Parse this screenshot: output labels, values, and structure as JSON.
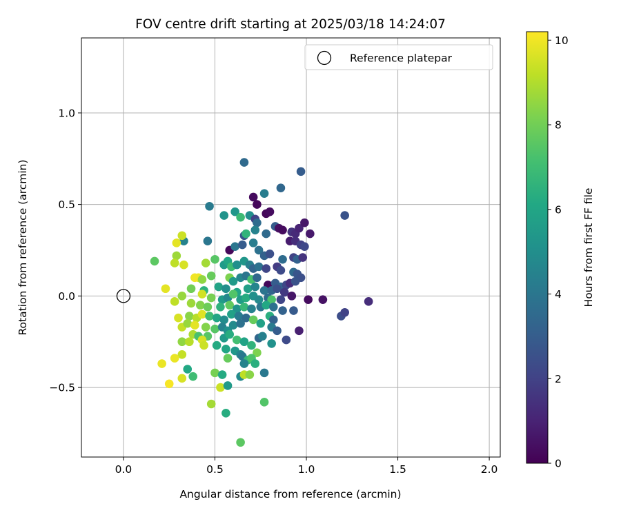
{
  "chart_data": {
    "type": "scatter",
    "title": "FOV centre drift starting at 2025/03/18 14:24:07",
    "xlabel": "Angular distance from reference (arcmin)",
    "ylabel": "Rotation from reference (arcmin)",
    "xlim": [
      -0.23,
      2.06
    ],
    "ylim": [
      -0.88,
      1.41
    ],
    "x_ticks": [
      0.0,
      0.5,
      1.0,
      1.5,
      2.0
    ],
    "x_tick_labels": [
      "0.0",
      "0.5",
      "1.0",
      "1.5",
      "2.0"
    ],
    "y_ticks": [
      -0.5,
      0.0,
      0.5,
      1.0
    ],
    "y_tick_labels": [
      "−0.5",
      "0.0",
      "0.5",
      "1.0"
    ],
    "grid": true,
    "legend": {
      "placement": "top-right",
      "entries": [
        {
          "label": "Reference platepar",
          "marker": "open-circle"
        }
      ]
    },
    "reference_point": {
      "x": 0.0,
      "y": 0.0
    },
    "colorbar": {
      "label": "Hours from first FF file",
      "colormap": "viridis",
      "range": [
        0,
        10.2
      ],
      "ticks": [
        0,
        2,
        4,
        6,
        8,
        10
      ],
      "tick_labels": [
        "0",
        "2",
        "4",
        "6",
        "8",
        "10"
      ]
    },
    "points": [
      {
        "x": 0.66,
        "y": 0.73,
        "c": 3.5
      },
      {
        "x": 0.97,
        "y": 0.68,
        "c": 3.0
      },
      {
        "x": 0.77,
        "y": 0.56,
        "c": 4.3
      },
      {
        "x": 0.86,
        "y": 0.59,
        "c": 3.4
      },
      {
        "x": 0.47,
        "y": 0.49,
        "c": 4.2
      },
      {
        "x": 0.55,
        "y": 0.44,
        "c": 5.2
      },
      {
        "x": 0.61,
        "y": 0.46,
        "c": 5.3
      },
      {
        "x": 0.64,
        "y": 0.43,
        "c": 6.9
      },
      {
        "x": 0.71,
        "y": 0.54,
        "c": 0.3
      },
      {
        "x": 0.73,
        "y": 0.5,
        "c": 0.2
      },
      {
        "x": 0.78,
        "y": 0.45,
        "c": 0.2
      },
      {
        "x": 0.8,
        "y": 0.46,
        "c": 0.3
      },
      {
        "x": 0.69,
        "y": 0.44,
        "c": 5.0
      },
      {
        "x": 0.72,
        "y": 0.42,
        "c": 2.0
      },
      {
        "x": 0.73,
        "y": 0.4,
        "c": 3.6
      },
      {
        "x": 0.83,
        "y": 0.38,
        "c": 3.0
      },
      {
        "x": 0.85,
        "y": 0.37,
        "c": 0.4
      },
      {
        "x": 0.87,
        "y": 0.36,
        "c": 0.3
      },
      {
        "x": 0.92,
        "y": 0.35,
        "c": 1.5
      },
      {
        "x": 0.94,
        "y": 0.34,
        "c": 1.2
      },
      {
        "x": 0.96,
        "y": 0.37,
        "c": 1.0
      },
      {
        "x": 0.99,
        "y": 0.4,
        "c": 0.6
      },
      {
        "x": 1.02,
        "y": 0.34,
        "c": 0.7
      },
      {
        "x": 1.21,
        "y": 0.44,
        "c": 2.6
      },
      {
        "x": 0.66,
        "y": 0.33,
        "c": 2.7
      },
      {
        "x": 0.67,
        "y": 0.34,
        "c": 6.6
      },
      {
        "x": 0.72,
        "y": 0.36,
        "c": 4.5
      },
      {
        "x": 0.78,
        "y": 0.34,
        "c": 3.5
      },
      {
        "x": 0.91,
        "y": 0.3,
        "c": 0.8
      },
      {
        "x": 0.94,
        "y": 0.3,
        "c": 1.3
      },
      {
        "x": 0.97,
        "y": 0.28,
        "c": 1.9
      },
      {
        "x": 0.99,
        "y": 0.27,
        "c": 2.2
      },
      {
        "x": 0.33,
        "y": 0.3,
        "c": 4.5
      },
      {
        "x": 0.32,
        "y": 0.33,
        "c": 9.4
      },
      {
        "x": 0.29,
        "y": 0.29,
        "c": 9.8
      },
      {
        "x": 0.46,
        "y": 0.3,
        "c": 4.0
      },
      {
        "x": 0.58,
        "y": 0.25,
        "c": 0.2
      },
      {
        "x": 0.61,
        "y": 0.27,
        "c": 4.0
      },
      {
        "x": 0.65,
        "y": 0.28,
        "c": 3.0
      },
      {
        "x": 0.71,
        "y": 0.29,
        "c": 4.3
      },
      {
        "x": 0.74,
        "y": 0.25,
        "c": 3.8
      },
      {
        "x": 0.77,
        "y": 0.22,
        "c": 3.2
      },
      {
        "x": 0.8,
        "y": 0.23,
        "c": 2.5
      },
      {
        "x": 0.87,
        "y": 0.2,
        "c": 3.6
      },
      {
        "x": 0.93,
        "y": 0.21,
        "c": 2.0
      },
      {
        "x": 0.95,
        "y": 0.2,
        "c": 3.2
      },
      {
        "x": 0.98,
        "y": 0.21,
        "c": 1.5
      },
      {
        "x": 0.17,
        "y": 0.19,
        "c": 7.6
      },
      {
        "x": 0.29,
        "y": 0.22,
        "c": 8.7
      },
      {
        "x": 0.28,
        "y": 0.18,
        "c": 9.2
      },
      {
        "x": 0.33,
        "y": 0.17,
        "c": 9.6
      },
      {
        "x": 0.45,
        "y": 0.18,
        "c": 8.8
      },
      {
        "x": 0.5,
        "y": 0.2,
        "c": 7.5
      },
      {
        "x": 0.55,
        "y": 0.17,
        "c": 5.5
      },
      {
        "x": 0.57,
        "y": 0.19,
        "c": 6.0
      },
      {
        "x": 0.59,
        "y": 0.16,
        "c": 7.0
      },
      {
        "x": 0.62,
        "y": 0.17,
        "c": 5.0
      },
      {
        "x": 0.66,
        "y": 0.19,
        "c": 5.3
      },
      {
        "x": 0.69,
        "y": 0.17,
        "c": 4.4
      },
      {
        "x": 0.71,
        "y": 0.15,
        "c": 3.3
      },
      {
        "x": 0.74,
        "y": 0.16,
        "c": 3.8
      },
      {
        "x": 0.78,
        "y": 0.15,
        "c": 2.1
      },
      {
        "x": 0.84,
        "y": 0.16,
        "c": 1.8
      },
      {
        "x": 0.86,
        "y": 0.14,
        "c": 2.3
      },
      {
        "x": 0.93,
        "y": 0.13,
        "c": 3.5
      },
      {
        "x": 0.95,
        "y": 0.12,
        "c": 2.7
      },
      {
        "x": 0.97,
        "y": 0.1,
        "c": 2.5
      },
      {
        "x": 0.41,
        "y": 0.1,
        "c": 9.9
      },
      {
        "x": 0.39,
        "y": 0.1,
        "c": 10.0
      },
      {
        "x": 0.43,
        "y": 0.09,
        "c": 8.5
      },
      {
        "x": 0.48,
        "y": 0.11,
        "c": 7.8
      },
      {
        "x": 0.58,
        "y": 0.1,
        "c": 8.2
      },
      {
        "x": 0.6,
        "y": 0.08,
        "c": 5.5
      },
      {
        "x": 0.64,
        "y": 0.1,
        "c": 4.7
      },
      {
        "x": 0.67,
        "y": 0.11,
        "c": 4.0
      },
      {
        "x": 0.7,
        "y": 0.09,
        "c": 7.2
      },
      {
        "x": 0.73,
        "y": 0.1,
        "c": 3.4
      },
      {
        "x": 0.79,
        "y": 0.06,
        "c": 0.2
      },
      {
        "x": 0.83,
        "y": 0.07,
        "c": 3.0
      },
      {
        "x": 0.86,
        "y": 0.05,
        "c": 3.4
      },
      {
        "x": 0.89,
        "y": 0.06,
        "c": 2.2
      },
      {
        "x": 0.91,
        "y": 0.07,
        "c": 1.3
      },
      {
        "x": 0.94,
        "y": 0.08,
        "c": 2.6
      },
      {
        "x": 0.23,
        "y": 0.04,
        "c": 9.8
      },
      {
        "x": 0.37,
        "y": 0.04,
        "c": 8.0
      },
      {
        "x": 0.44,
        "y": 0.03,
        "c": 6.5
      },
      {
        "x": 0.52,
        "y": 0.05,
        "c": 5.9
      },
      {
        "x": 0.56,
        "y": 0.04,
        "c": 5.0
      },
      {
        "x": 0.62,
        "y": 0.02,
        "c": 6.0
      },
      {
        "x": 0.68,
        "y": 0.04,
        "c": 5.7
      },
      {
        "x": 0.72,
        "y": 0.05,
        "c": 4.6
      },
      {
        "x": 0.77,
        "y": 0.03,
        "c": 3.9
      },
      {
        "x": 0.81,
        "y": 0.03,
        "c": 3.3
      },
      {
        "x": 0.84,
        "y": 0.04,
        "c": 2.5
      },
      {
        "x": 0.88,
        "y": 0.02,
        "c": 1.7
      },
      {
        "x": 0.92,
        "y": 0.0,
        "c": 0.6
      },
      {
        "x": 0.32,
        "y": 0.0,
        "c": 8.6
      },
      {
        "x": 0.43,
        "y": 0.01,
        "c": 9.5
      },
      {
        "x": 0.48,
        "y": -0.01,
        "c": 8.1
      },
      {
        "x": 0.54,
        "y": -0.02,
        "c": 5.5
      },
      {
        "x": 0.57,
        "y": -0.01,
        "c": 4.7
      },
      {
        "x": 0.6,
        "y": 0.01,
        "c": 7.4
      },
      {
        "x": 0.64,
        "y": -0.02,
        "c": 5.6
      },
      {
        "x": 0.67,
        "y": -0.01,
        "c": 6.3
      },
      {
        "x": 0.71,
        "y": 0.0,
        "c": 5.1
      },
      {
        "x": 0.74,
        "y": -0.02,
        "c": 4.8
      },
      {
        "x": 0.79,
        "y": -0.01,
        "c": 3.5
      },
      {
        "x": 0.81,
        "y": -0.02,
        "c": 7.3
      },
      {
        "x": 0.86,
        "y": -0.02,
        "c": 2.1
      },
      {
        "x": 1.01,
        "y": -0.02,
        "c": 0.3
      },
      {
        "x": 1.09,
        "y": -0.02,
        "c": 0.5
      },
      {
        "x": 1.34,
        "y": -0.03,
        "c": 1.3
      },
      {
        "x": 0.28,
        "y": -0.03,
        "c": 9.2
      },
      {
        "x": 0.37,
        "y": -0.04,
        "c": 8.7
      },
      {
        "x": 0.42,
        "y": -0.05,
        "c": 8.3
      },
      {
        "x": 0.46,
        "y": -0.06,
        "c": 7.9
      },
      {
        "x": 0.53,
        "y": -0.06,
        "c": 6.5
      },
      {
        "x": 0.58,
        "y": -0.05,
        "c": 7.7
      },
      {
        "x": 0.62,
        "y": -0.07,
        "c": 5.2
      },
      {
        "x": 0.66,
        "y": -0.06,
        "c": 6.8
      },
      {
        "x": 0.7,
        "y": -0.07,
        "c": 4.5
      },
      {
        "x": 0.75,
        "y": -0.06,
        "c": 4.0
      },
      {
        "x": 0.78,
        "y": -0.05,
        "c": 6.1
      },
      {
        "x": 0.82,
        "y": -0.06,
        "c": 3.8
      },
      {
        "x": 0.87,
        "y": -0.08,
        "c": 3.2
      },
      {
        "x": 0.93,
        "y": -0.08,
        "c": 2.9
      },
      {
        "x": 1.19,
        "y": -0.11,
        "c": 2.4
      },
      {
        "x": 1.21,
        "y": -0.09,
        "c": 2.0
      },
      {
        "x": 0.3,
        "y": -0.12,
        "c": 9.6
      },
      {
        "x": 0.36,
        "y": -0.11,
        "c": 8.4
      },
      {
        "x": 0.4,
        "y": -0.12,
        "c": 9.1
      },
      {
        "x": 0.43,
        "y": -0.1,
        "c": 9.7
      },
      {
        "x": 0.47,
        "y": -0.11,
        "c": 7.0
      },
      {
        "x": 0.51,
        "y": -0.12,
        "c": 6.0
      },
      {
        "x": 0.55,
        "y": -0.13,
        "c": 4.9
      },
      {
        "x": 0.59,
        "y": -0.1,
        "c": 5.8
      },
      {
        "x": 0.63,
        "y": -0.11,
        "c": 4.2
      },
      {
        "x": 0.67,
        "y": -0.12,
        "c": 3.5
      },
      {
        "x": 0.71,
        "y": -0.13,
        "c": 7.8
      },
      {
        "x": 0.8,
        "y": -0.11,
        "c": 6.4
      },
      {
        "x": 0.82,
        "y": -0.13,
        "c": 3.2
      },
      {
        "x": 0.32,
        "y": -0.17,
        "c": 9.3
      },
      {
        "x": 0.35,
        "y": -0.15,
        "c": 8.6
      },
      {
        "x": 0.39,
        "y": -0.16,
        "c": 9.8
      },
      {
        "x": 0.45,
        "y": -0.17,
        "c": 8.3
      },
      {
        "x": 0.5,
        "y": -0.18,
        "c": 7.5
      },
      {
        "x": 0.54,
        "y": -0.17,
        "c": 4.5
      },
      {
        "x": 0.57,
        "y": -0.19,
        "c": 5.1
      },
      {
        "x": 0.6,
        "y": -0.16,
        "c": 4.8
      },
      {
        "x": 0.64,
        "y": -0.15,
        "c": 3.8
      },
      {
        "x": 0.75,
        "y": -0.15,
        "c": 5.8
      },
      {
        "x": 0.81,
        "y": -0.17,
        "c": 4.2
      },
      {
        "x": 0.84,
        "y": -0.19,
        "c": 3.0
      },
      {
        "x": 0.96,
        "y": -0.19,
        "c": 0.9
      },
      {
        "x": 0.38,
        "y": -0.21,
        "c": 8.9
      },
      {
        "x": 0.41,
        "y": -0.22,
        "c": 7.2
      },
      {
        "x": 0.46,
        "y": -0.22,
        "c": 7.5
      },
      {
        "x": 0.55,
        "y": -0.23,
        "c": 5.5
      },
      {
        "x": 0.58,
        "y": -0.21,
        "c": 6.3
      },
      {
        "x": 0.62,
        "y": -0.24,
        "c": 7.1
      },
      {
        "x": 0.66,
        "y": -0.25,
        "c": 5.9
      },
      {
        "x": 0.7,
        "y": -0.27,
        "c": 6.6
      },
      {
        "x": 0.74,
        "y": -0.23,
        "c": 3.4
      },
      {
        "x": 0.76,
        "y": -0.22,
        "c": 4.4
      },
      {
        "x": 0.81,
        "y": -0.26,
        "c": 5.1
      },
      {
        "x": 0.89,
        "y": -0.24,
        "c": 2.3
      },
      {
        "x": 0.32,
        "y": -0.25,
        "c": 8.5
      },
      {
        "x": 0.36,
        "y": -0.25,
        "c": 9.1
      },
      {
        "x": 0.43,
        "y": -0.24,
        "c": 9.6
      },
      {
        "x": 0.44,
        "y": -0.27,
        "c": 9.4
      },
      {
        "x": 0.51,
        "y": -0.27,
        "c": 6.2
      },
      {
        "x": 0.56,
        "y": -0.29,
        "c": 6.0
      },
      {
        "x": 0.61,
        "y": -0.3,
        "c": 5.4
      },
      {
        "x": 0.64,
        "y": -0.32,
        "c": 4.6
      },
      {
        "x": 0.73,
        "y": -0.31,
        "c": 8.2
      },
      {
        "x": 0.32,
        "y": -0.32,
        "c": 9.3
      },
      {
        "x": 0.28,
        "y": -0.34,
        "c": 9.9
      },
      {
        "x": 0.57,
        "y": -0.34,
        "c": 7.8
      },
      {
        "x": 0.65,
        "y": -0.33,
        "c": 4.1
      },
      {
        "x": 0.68,
        "y": -0.35,
        "c": 6.8
      },
      {
        "x": 0.66,
        "y": -0.37,
        "c": 4.5
      },
      {
        "x": 0.7,
        "y": -0.34,
        "c": 7.3
      },
      {
        "x": 0.72,
        "y": -0.37,
        "c": 6.4
      },
      {
        "x": 0.21,
        "y": -0.37,
        "c": 9.9
      },
      {
        "x": 0.35,
        "y": -0.4,
        "c": 6.1
      },
      {
        "x": 0.38,
        "y": -0.44,
        "c": 7.0
      },
      {
        "x": 0.32,
        "y": -0.45,
        "c": 9.6
      },
      {
        "x": 0.5,
        "y": -0.42,
        "c": 8.1
      },
      {
        "x": 0.54,
        "y": -0.43,
        "c": 6.2
      },
      {
        "x": 0.64,
        "y": -0.44,
        "c": 4.8
      },
      {
        "x": 0.66,
        "y": -0.43,
        "c": 9.2
      },
      {
        "x": 0.69,
        "y": -0.43,
        "c": 8.4
      },
      {
        "x": 0.77,
        "y": -0.42,
        "c": 4.1
      },
      {
        "x": 0.25,
        "y": -0.48,
        "c": 10.1
      },
      {
        "x": 0.53,
        "y": -0.5,
        "c": 9.4
      },
      {
        "x": 0.57,
        "y": -0.49,
        "c": 5.5
      },
      {
        "x": 0.48,
        "y": -0.59,
        "c": 8.8
      },
      {
        "x": 0.77,
        "y": -0.58,
        "c": 7.4
      },
      {
        "x": 0.56,
        "y": -0.64,
        "c": 6.3
      },
      {
        "x": 0.64,
        "y": -0.8,
        "c": 7.6
      }
    ]
  }
}
